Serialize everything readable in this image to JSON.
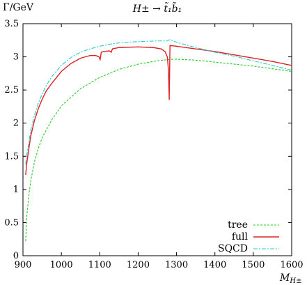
{
  "chart_data": {
    "type": "line",
    "title": "H± → t̃₁b̃₁",
    "ylabel": "Γ/GeV",
    "xlabel": "M",
    "xlabel_sub": "H±",
    "xlim": [
      900,
      1600
    ],
    "ylim": [
      0,
      3.5
    ],
    "xticks": [
      900,
      1000,
      1100,
      1200,
      1300,
      1400,
      1500,
      1600
    ],
    "yticks": [
      0,
      0.5,
      1,
      1.5,
      2,
      2.5,
      3,
      3.5
    ],
    "legend_position": "bottom-right",
    "grid": false,
    "series": [
      {
        "name": "tree",
        "color": "#22cc22",
        "dash": "dashed",
        "points": [
          [
            907,
            0.22
          ],
          [
            910,
            0.6
          ],
          [
            915,
            0.9
          ],
          [
            920,
            1.12
          ],
          [
            930,
            1.42
          ],
          [
            940,
            1.62
          ],
          [
            950,
            1.78
          ],
          [
            975,
            2.05
          ],
          [
            1000,
            2.26
          ],
          [
            1050,
            2.52
          ],
          [
            1100,
            2.69
          ],
          [
            1150,
            2.81
          ],
          [
            1200,
            2.89
          ],
          [
            1250,
            2.94
          ],
          [
            1280,
            2.96
          ],
          [
            1300,
            2.965
          ],
          [
            1350,
            2.95
          ],
          [
            1400,
            2.92
          ],
          [
            1450,
            2.89
          ],
          [
            1500,
            2.86
          ],
          [
            1550,
            2.82
          ],
          [
            1600,
            2.78
          ]
        ]
      },
      {
        "name": "full",
        "color": "#dd2222",
        "dash": "solid",
        "points": [
          [
            907,
            1.22
          ],
          [
            910,
            1.4
          ],
          [
            915,
            1.6
          ],
          [
            920,
            1.8
          ],
          [
            930,
            2.04
          ],
          [
            940,
            2.22
          ],
          [
            950,
            2.36
          ],
          [
            960,
            2.48
          ],
          [
            975,
            2.6
          ],
          [
            1000,
            2.78
          ],
          [
            1025,
            2.9
          ],
          [
            1050,
            2.98
          ],
          [
            1075,
            3.02
          ],
          [
            1090,
            3.02
          ],
          [
            1098,
            3.0
          ],
          [
            1101,
            2.96
          ],
          [
            1104,
            3.07
          ],
          [
            1110,
            3.08
          ],
          [
            1125,
            3.09
          ],
          [
            1130,
            3.07
          ],
          [
            1133,
            3.12
          ],
          [
            1150,
            3.14
          ],
          [
            1200,
            3.15
          ],
          [
            1240,
            3.14
          ],
          [
            1260,
            3.12
          ],
          [
            1270,
            3.08
          ],
          [
            1276,
            3.0
          ],
          [
            1279,
            2.8
          ],
          [
            1281,
            2.35
          ],
          [
            1283,
            3.17
          ],
          [
            1300,
            3.16
          ],
          [
            1350,
            3.12
          ],
          [
            1400,
            3.08
          ],
          [
            1450,
            3.03
          ],
          [
            1500,
            2.98
          ],
          [
            1550,
            2.93
          ],
          [
            1600,
            2.87
          ]
        ]
      },
      {
        "name": "SQCD",
        "color": "#22cccc",
        "dash": "dashdot",
        "points": [
          [
            907,
            1.38
          ],
          [
            910,
            1.52
          ],
          [
            915,
            1.7
          ],
          [
            920,
            1.88
          ],
          [
            930,
            2.12
          ],
          [
            940,
            2.3
          ],
          [
            950,
            2.44
          ],
          [
            960,
            2.56
          ],
          [
            975,
            2.7
          ],
          [
            1000,
            2.87
          ],
          [
            1025,
            2.99
          ],
          [
            1050,
            3.07
          ],
          [
            1075,
            3.12
          ],
          [
            1100,
            3.16
          ],
          [
            1125,
            3.19
          ],
          [
            1150,
            3.21
          ],
          [
            1200,
            3.23
          ],
          [
            1250,
            3.24
          ],
          [
            1275,
            3.24
          ],
          [
            1283,
            3.26
          ],
          [
            1300,
            3.22
          ],
          [
            1350,
            3.14
          ],
          [
            1400,
            3.07
          ],
          [
            1450,
            3.01
          ],
          [
            1500,
            2.94
          ],
          [
            1550,
            2.87
          ],
          [
            1600,
            2.8
          ]
        ]
      }
    ]
  }
}
